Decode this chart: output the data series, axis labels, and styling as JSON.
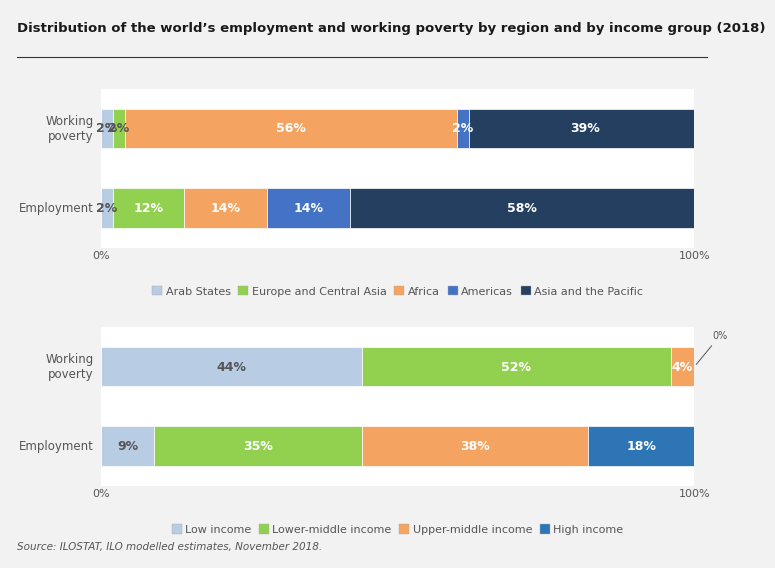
{
  "title": "Distribution of the world’s employment and working poverty by region and by income group (2018)",
  "source": "Source: ILOSTAT, ILO modelled estimates, November 2018.",
  "region_categories": [
    "Working\npoverty",
    "Employment"
  ],
  "region_segments": [
    "Arab States",
    "Europe and Central Asia",
    "Africa",
    "Americas",
    "Asia and the Pacific"
  ],
  "region_colors": [
    "#b8cce4",
    "#92d050",
    "#f4a460",
    "#4472c4",
    "#243f60"
  ],
  "region_data": [
    [
      2,
      2,
      56,
      2,
      39
    ],
    [
      2,
      12,
      14,
      14,
      58
    ]
  ],
  "region_labels": [
    [
      "2%",
      "2%",
      "56%",
      "2%",
      "39%"
    ],
    [
      "2%",
      "12%",
      "14%",
      "14%",
      "58%"
    ]
  ],
  "region_label_colors": [
    [
      "#555555",
      "#555555",
      "#ffffff",
      "#ffffff",
      "#ffffff"
    ],
    [
      "#555555",
      "#ffffff",
      "#ffffff",
      "#ffffff",
      "#ffffff"
    ]
  ],
  "income_categories": [
    "Working\npoverty",
    "Employment"
  ],
  "income_segments": [
    "Low income",
    "Lower-middle income",
    "Upper-middle income",
    "High income"
  ],
  "income_colors": [
    "#b8cce4",
    "#92d050",
    "#f4a460",
    "#2e75b6"
  ],
  "income_data": [
    [
      44,
      52,
      4,
      0
    ],
    [
      9,
      35,
      38,
      18
    ]
  ],
  "income_labels": [
    [
      "44%",
      "52%",
      "4%",
      "0%"
    ],
    [
      "9%",
      "35%",
      "38%",
      "18%"
    ]
  ],
  "income_label_colors": [
    [
      "#555555",
      "#ffffff",
      "#ffffff",
      "#ffffff"
    ],
    [
      "#555555",
      "#ffffff",
      "#ffffff",
      "#ffffff"
    ]
  ],
  "outer_bg": "#dce6f1",
  "inner_bg": "#ffffff",
  "fig_bg": "#f2f2f2",
  "text_color": "#555555",
  "title_color": "#1a1a1a",
  "bar_height": 0.5,
  "fontsize_title": 9.5,
  "fontsize_bar_label": 9,
  "fontsize_axis": 8,
  "fontsize_legend": 8,
  "fontsize_source": 7.5,
  "fontsize_yticklabel": 8.5
}
